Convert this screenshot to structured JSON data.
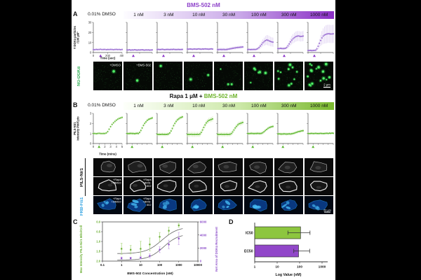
{
  "figure": {
    "panelA": {
      "label": "A",
      "title": "BMS-502 nM",
      "title_color": "#8c3fc9",
      "dmso_label": "0.01% DMSO",
      "concentrations": [
        "1 nM",
        "3 nM",
        "10 nM",
        "30 nM",
        "100 nM",
        "300 nM",
        "1000 nM"
      ],
      "gradient": [
        "#fdfcff",
        "#c9a8e8",
        "#8a2fc5"
      ],
      "accent": "#8c35c9",
      "marker_color": "#9b6fd2",
      "error_color": "#c9b0e8",
      "image_row_label": "NG-DGKα",
      "image_row_label_color": "#2fae53",
      "image_overlays": [
        "+DMSO",
        "+BMS-502"
      ],
      "scale_bar": "2 μm",
      "puncta_counts": [
        1,
        1,
        1,
        2,
        3,
        6,
        10,
        18
      ]
    },
    "panelB": {
      "label": "B",
      "title_prefix": "Rapa 1 μM + ",
      "title_accent": "BMS-502 nM",
      "title_accent_color": "#6db32a",
      "dmso_label": "0.01% DMSO",
      "concentrations": [
        "1 nM",
        "3 nM",
        "10 nM",
        "30 nM",
        "100 nM",
        "300 nM",
        "1000 nM"
      ],
      "gradient": [
        "#fdfffa",
        "#cce8a8",
        "#7ab82e"
      ],
      "accent": "#5cb832",
      "marker_color": "#66bb3a",
      "error_color": "#b9e190",
      "row_label_1": "PILS-Nir1",
      "row_label_1_color": "#111111",
      "row_label_2": "FRB-Fis1",
      "row_label_2_color": "#2b9fe0",
      "image_overlays_col1": [
        "+Rapa",
        "+DMSO"
      ],
      "image_overlays_col2": [
        "+Rapa",
        "+BMS-",
        "502"
      ],
      "scale_bar": "20 μm"
    },
    "panelC": {
      "label": "C"
    },
    "panelD": {
      "label": "D"
    }
  },
  "chart_data": [
    {
      "id": "panelA-timecourse",
      "type": "scatter",
      "xlabel": "Time (sec)",
      "ylabel_lines": [
        "# DGKα particles",
        "/100 μM²"
      ],
      "xlim": [
        0,
        400
      ],
      "ylim": [
        0,
        30
      ],
      "xticks": [
        0,
        200,
        400
      ],
      "yticks": [
        0,
        10,
        20,
        30
      ],
      "injection_x": 100,
      "x": [
        0,
        20,
        40,
        60,
        80,
        100,
        120,
        140,
        160,
        180,
        200,
        220,
        240,
        260,
        280,
        300,
        320,
        340,
        360,
        380,
        400
      ],
      "series": [
        {
          "name": "0.01% DMSO",
          "y": [
            3,
            2.8,
            3.1,
            2.9,
            3,
            3.2,
            2.9,
            3,
            3.1,
            2.8,
            3,
            2.9,
            3.1,
            3,
            2.8,
            3,
            3.1,
            2.9,
            3,
            2.8,
            3
          ],
          "err": 1
        },
        {
          "name": "1 nM",
          "y": [
            2.6,
            2.5,
            2.7,
            2.4,
            2.6,
            2.5,
            2.7,
            2.6,
            2.4,
            2.6,
            2.5,
            2.6,
            2.7,
            2.5,
            2.4,
            2.6,
            2.5,
            2.6,
            2.4,
            2.5,
            2.6
          ],
          "err": 0.8
        },
        {
          "name": "3 nM",
          "y": [
            3,
            3.1,
            2.9,
            3,
            3.2,
            3,
            2.8,
            3,
            3.1,
            3,
            2.9,
            3.1,
            3,
            3.2,
            3,
            2.9,
            3,
            3.1,
            2.9,
            3,
            3.1
          ],
          "err": 1
        },
        {
          "name": "10 nM",
          "y": [
            3.4,
            3.3,
            3.5,
            3.4,
            3.2,
            3.4,
            3.5,
            3.3,
            3.4,
            3.6,
            3.4,
            3.3,
            3.5,
            3.4,
            3.6,
            3.5,
            3.4,
            3.3,
            3.5,
            3.6,
            3.4
          ],
          "err": 1
        },
        {
          "name": "30 nM",
          "y": [
            3,
            2.9,
            3.1,
            3,
            3,
            3.1,
            2.9,
            3,
            3.2,
            3.4,
            3.7,
            3.9,
            4.2,
            4.4,
            4.6,
            4.8,
            5,
            5.1,
            5.3,
            5.4,
            5.5
          ],
          "err": 1.5
        },
        {
          "name": "100 nM",
          "y": [
            3,
            3.1,
            2.9,
            3,
            3,
            3.1,
            3,
            3.3,
            3.9,
            5,
            6.5,
            8,
            9.6,
            10.8,
            11.8,
            12.4,
            12.2,
            11.6,
            11,
            10.6,
            10.3
          ],
          "err": [
            1,
            1,
            1,
            1,
            1,
            1,
            1,
            1.2,
            1.5,
            2,
            2.5,
            3,
            3.5,
            4,
            4.5,
            4.8,
            5,
            5,
            4.8,
            4.6,
            4.5
          ]
        },
        {
          "name": "300 nM",
          "y": [
            4,
            3.9,
            4.1,
            4,
            3.9,
            4,
            4.2,
            5,
            6.6,
            8.6,
            10.6,
            12.3,
            13.7,
            14.8,
            15.7,
            16.2,
            16.5,
            16.3,
            15.9,
            16.1,
            16.4
          ],
          "err": [
            1.2,
            1.2,
            1.2,
            1.2,
            1.2,
            1.2,
            1.4,
            1.8,
            2.4,
            3,
            3.6,
            4.2,
            4.6,
            4.9,
            5,
            5,
            5,
            5,
            5,
            5,
            5
          ]
        },
        {
          "name": "1000 nM",
          "y": [
            2,
            2,
            2.1,
            1.9,
            2,
            2.1,
            2.3,
            3.6,
            6.2,
            9.2,
            12,
            14.5,
            16.3,
            17.4,
            18,
            18.5,
            18.7,
            18.6,
            18.4,
            18.5,
            18.6
          ],
          "err": [
            1,
            1,
            1,
            1,
            1,
            1,
            1.3,
            2,
            3,
            4.2,
            5.5,
            6.8,
            7.8,
            8.5,
            9,
            9,
            9,
            9,
            9,
            9,
            9
          ]
        }
      ]
    },
    {
      "id": "panelB-timecourse",
      "type": "scatter",
      "xlabel": "Time (mins)",
      "ylabel_lines": [
        "PILS-Nir1",
        "Intensity PM/Cyto"
      ],
      "xlim": [
        0,
        5
      ],
      "ylim": [
        0,
        3
      ],
      "xticks": [
        0,
        1,
        2,
        3,
        4,
        5
      ],
      "yticks": [
        0,
        1,
        2,
        3
      ],
      "injection_x": 1,
      "x": [
        0,
        0.25,
        0.5,
        0.75,
        1,
        1.25,
        1.5,
        1.75,
        2,
        2.25,
        2.5,
        2.75,
        3,
        3.25,
        3.5,
        3.75,
        4,
        4.25,
        4.5,
        4.75,
        5
      ],
      "series": [
        {
          "name": "0.01% DMSO",
          "y": [
            1,
            1,
            0.98,
            1,
            1.02,
            1,
            0.99,
            1,
            1,
            1.05,
            1.18,
            1.42,
            1.68,
            1.9,
            2.06,
            2.2,
            2.32,
            2.42,
            2.5,
            2.55,
            2.6
          ],
          "err": 0.12
        },
        {
          "name": "1 nM",
          "y": [
            1,
            0.99,
            1,
            1.01,
            1,
            1,
            0.98,
            1,
            1.02,
            1,
            1.1,
            1.3,
            1.55,
            1.8,
            2,
            2.15,
            2.3,
            2.4,
            2.45,
            2.5,
            2.55
          ],
          "err": 0.15
        },
        {
          "name": "3 nM",
          "y": [
            0.92,
            0.9,
            0.91,
            0.9,
            0.92,
            0.9,
            0.91,
            0.9,
            0.92,
            0.95,
            1.05,
            1.25,
            1.5,
            1.78,
            2,
            2.2,
            2.35,
            2.45,
            2.55,
            2.6,
            2.65
          ],
          "err": 0.18
        },
        {
          "name": "10 nM",
          "y": [
            0.9,
            0.91,
            0.9,
            0.92,
            0.9,
            0.9,
            0.91,
            0.9,
            0.92,
            0.9,
            0.95,
            1.1,
            1.35,
            1.6,
            1.85,
            2.05,
            2.2,
            2.3,
            2.35,
            2.4,
            2.45
          ],
          "err": 0.25
        },
        {
          "name": "30 nM",
          "y": [
            0.92,
            0.9,
            0.91,
            0.92,
            0.9,
            0.91,
            0.9,
            0.92,
            0.9,
            0.91,
            0.93,
            1,
            1.15,
            1.35,
            1.55,
            1.7,
            1.85,
            1.95,
            2,
            2.05,
            2.1
          ],
          "err": 0.22
        },
        {
          "name": "100 nM",
          "y": [
            1,
            0.99,
            1,
            1.01,
            1,
            0.99,
            1,
            1,
            1.01,
            1,
            1,
            1.02,
            1.08,
            1.18,
            1.3,
            1.4,
            1.5,
            1.58,
            1.63,
            1.67,
            1.7
          ],
          "err": 0.15
        },
        {
          "name": "300 nM",
          "y": [
            0.95,
            0.96,
            0.95,
            0.94,
            0.95,
            0.96,
            0.95,
            0.94,
            0.95,
            0.96,
            0.95,
            0.97,
            1,
            1.03,
            1.08,
            1.12,
            1.17,
            1.2,
            1.23,
            1.26,
            1.28
          ],
          "err": 0.15
        },
        {
          "name": "1000 nM",
          "y": [
            1,
            0.99,
            1,
            1.01,
            0.99,
            1,
            1.01,
            1,
            0.99,
            1,
            1.01,
            1,
            0.99,
            1,
            1.01,
            1.02,
            1,
            1.03,
            1.01,
            1.04,
            1.02
          ],
          "err": 0.1
        }
      ]
    },
    {
      "id": "panelC-dose-response",
      "type": "scatter",
      "xlabel": "BMS-502 Concentration (nM)",
      "xscale": "log",
      "xlim": [
        0.1,
        10000
      ],
      "xticks": [
        0.1,
        1,
        10,
        100,
        1000,
        10000
      ],
      "left_axis": {
        "label": "Max Intensity PILS-Nir1 Mito/Cell",
        "color": "#6aae32",
        "ticks": [
          0,
          0.5,
          1,
          1.5,
          2
        ],
        "lim": [
          0,
          2
        ],
        "inverted": true
      },
      "right_axis": {
        "label": "Net Area of DGKα Recruitment",
        "color": "#8d4fc9",
        "ticks": [
          0,
          2000,
          4000,
          6000
        ],
        "lim": [
          0,
          6000
        ]
      },
      "x": [
        1,
        3,
        10,
        30,
        100,
        300,
        1000
      ],
      "series_green": {
        "values": [
          1.37,
          1.42,
          1.37,
          1.15,
          0.76,
          0.45,
          0.18
        ],
        "err": [
          0.28,
          0.22,
          0.38,
          0.33,
          0.22,
          0.18,
          0.1
        ],
        "fit": {
          "y0": 1.62,
          "y1": 0.25,
          "x50": 130,
          "hill": 1.05
        }
      },
      "series_purple": {
        "values": [
          450,
          450,
          520,
          800,
          1750,
          2550,
          3450
        ],
        "err": [
          180,
          160,
          220,
          300,
          450,
          650,
          950
        ],
        "fit": {
          "y0": 150,
          "y1": 4200,
          "x50": 160,
          "hill": 1.1
        }
      }
    },
    {
      "id": "panelD-ic50-ec50",
      "type": "bar",
      "orientation": "horizontal",
      "xlabel": "Log Value (nM)",
      "xscale": "log",
      "xlim": [
        1,
        1000
      ],
      "xticks": [
        1,
        10,
        100,
        1000
      ],
      "bars": [
        {
          "label": "IC50",
          "value": 110,
          "err_low": 30,
          "err_high": 290,
          "color": "#8dc63f"
        },
        {
          "label": "EC50",
          "value": 90,
          "err_low": 55,
          "err_high": 280,
          "color": "#9147c9"
        }
      ]
    }
  ]
}
